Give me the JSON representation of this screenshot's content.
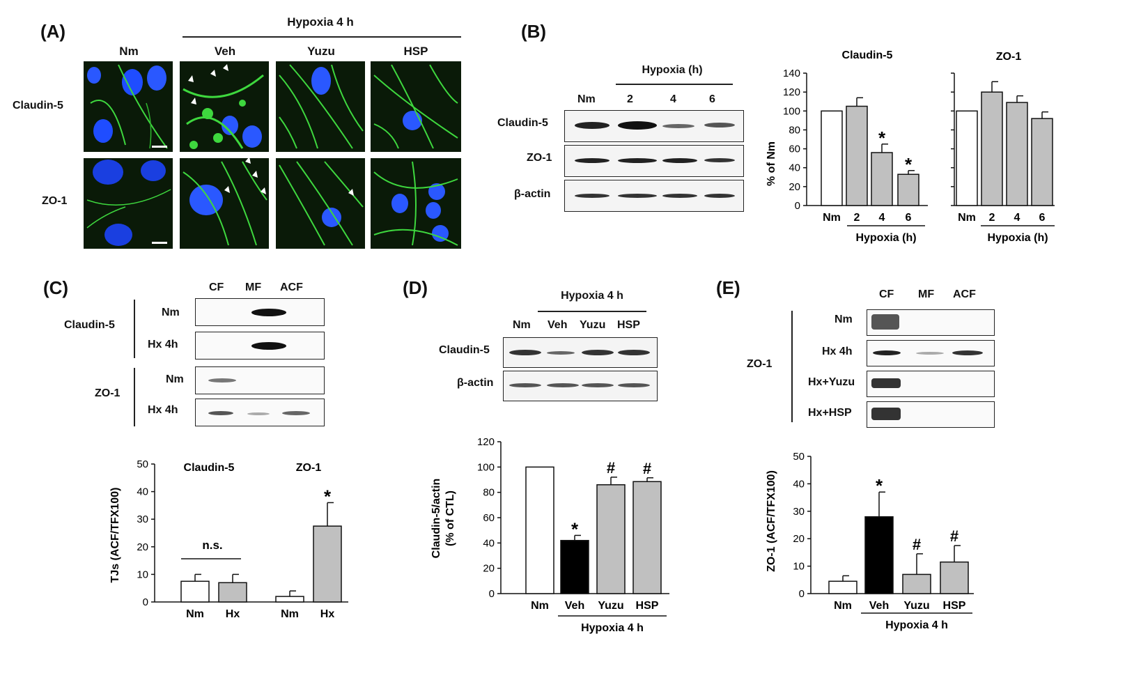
{
  "panels": {
    "A": {
      "label": "(A)",
      "group_header": "Hypoxia 4 h",
      "columns": [
        "Nm",
        "Veh",
        "Yuzu",
        "HSP"
      ],
      "rows": [
        "Claudin-5",
        "ZO-1"
      ]
    },
    "B": {
      "label": "(B)",
      "blot_header": "Hypoxia (h)",
      "blot_lanes": [
        "Nm",
        "2",
        "4",
        "6"
      ],
      "blot_rows": [
        "Claudin-5",
        "ZO-1",
        "β-actin"
      ]
    },
    "C": {
      "label": "(C)",
      "fractions": [
        "CF",
        "MF",
        "ACF"
      ],
      "groups": [
        {
          "name": "Claudin-5",
          "rows": [
            "Nm",
            "Hx 4h"
          ]
        },
        {
          "name": "ZO-1",
          "rows": [
            "Nm",
            "Hx 4h"
          ]
        }
      ]
    },
    "D": {
      "label": "(D)",
      "blot_header": "Hypoxia 4 h",
      "blot_lanes": [
        "Nm",
        "Veh",
        "Yuzu",
        "HSP"
      ],
      "blot_rows": [
        "Claudin-5",
        "β-actin"
      ]
    },
    "E": {
      "label": "(E)",
      "fractions": [
        "CF",
        "MF",
        "ACF"
      ],
      "group_name": "ZO-1",
      "rows": [
        "Nm",
        "Hx 4h",
        "Hx+Yuzu",
        "Hx+HSP"
      ]
    }
  },
  "chart_data": [
    {
      "id": "B-claudin5",
      "type": "bar",
      "title": "Claudin-5",
      "ylabel": "% of Nm",
      "ylim": [
        0,
        140
      ],
      "yticks": [
        0,
        20,
        40,
        60,
        80,
        100,
        120,
        140
      ],
      "categories": [
        "Nm",
        "2",
        "4",
        "6"
      ],
      "values": [
        100,
        105,
        56,
        33
      ],
      "errors": [
        0,
        9,
        9,
        4
      ],
      "colors": [
        "#ffffff",
        "#c0c0c0",
        "#c0c0c0",
        "#c0c0c0"
      ],
      "annotations": [
        "",
        "",
        "*",
        "*"
      ],
      "group_label": "Hypoxia (h)"
    },
    {
      "id": "B-zo1",
      "type": "bar",
      "title": "ZO-1",
      "ylim": [
        0,
        140
      ],
      "categories": [
        "Nm",
        "2",
        "4",
        "6"
      ],
      "values": [
        100,
        120,
        109,
        92
      ],
      "errors": [
        0,
        11,
        7,
        7
      ],
      "colors": [
        "#ffffff",
        "#c0c0c0",
        "#c0c0c0",
        "#c0c0c0"
      ],
      "annotations": [
        "",
        "",
        "",
        ""
      ],
      "group_label": "Hypoxia (h)"
    },
    {
      "id": "C-tjs",
      "type": "bar",
      "ylabel": "TJs (ACF/TFX100)",
      "ylim": [
        0,
        50
      ],
      "yticks": [
        0,
        10,
        20,
        30,
        40,
        50
      ],
      "groups": [
        "Claudin-5",
        "ZO-1"
      ],
      "categories": [
        "Nm",
        "Hx",
        "Nm",
        "Hx"
      ],
      "values": [
        7.5,
        7,
        2,
        27.5
      ],
      "errors": [
        2.5,
        3,
        2,
        8.5
      ],
      "colors": [
        "#ffffff",
        "#c0c0c0",
        "#ffffff",
        "#c0c0c0"
      ],
      "annotations": [
        "",
        "",
        "",
        "*"
      ],
      "ns_label": "n.s."
    },
    {
      "id": "D-claudin5",
      "type": "bar",
      "ylabel": "Claudin-5/actin\n(% of CTL)",
      "ylabel_lines": [
        "Claudin-5/actin",
        "(% of CTL)"
      ],
      "ylim": [
        0,
        120
      ],
      "yticks": [
        0,
        20,
        40,
        60,
        80,
        100,
        120
      ],
      "categories": [
        "Nm",
        "Veh",
        "Yuzu",
        "HSP"
      ],
      "values": [
        100,
        42,
        86,
        88.5
      ],
      "errors": [
        0,
        4,
        6,
        3
      ],
      "colors": [
        "#ffffff",
        "#000000",
        "#c0c0c0",
        "#c0c0c0"
      ],
      "annotations": [
        "",
        "*",
        "#",
        "#"
      ],
      "group_label": "Hypoxia 4 h"
    },
    {
      "id": "E-zo1",
      "type": "bar",
      "ylabel": "ZO-1 (ACF/TFX100)",
      "ylim": [
        0,
        50
      ],
      "yticks": [
        0,
        10,
        20,
        30,
        40,
        50
      ],
      "categories": [
        "Nm",
        "Veh",
        "Yuzu",
        "HSP"
      ],
      "values": [
        4.5,
        28,
        7,
        11.5
      ],
      "errors": [
        2,
        9,
        7.5,
        6
      ],
      "colors": [
        "#ffffff",
        "#000000",
        "#c0c0c0",
        "#c0c0c0"
      ],
      "annotations": [
        "",
        "*",
        "#",
        "#"
      ],
      "group_label": "Hypoxia 4 h"
    }
  ]
}
